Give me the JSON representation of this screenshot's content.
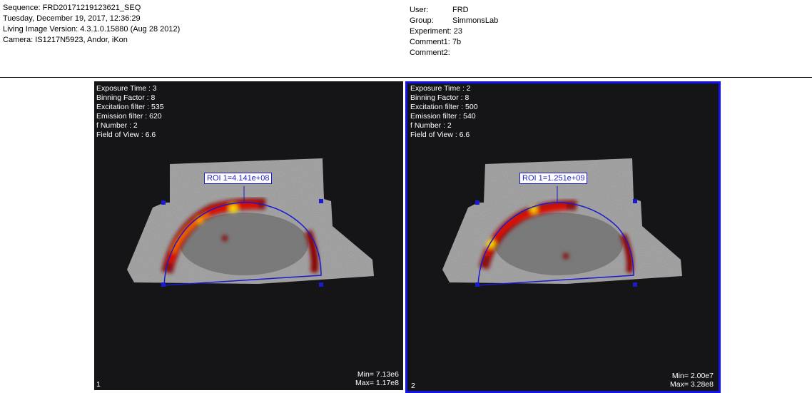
{
  "header": {
    "left": [
      "Sequence: FRD20171219123621_SEQ",
      "Tuesday, December 19, 2017, 12:36:29",
      "Living Image Version: 4.3.1.0.15880 (Aug 28 2012)",
      "Camera: IS1217N5923, Andor, iKon"
    ],
    "right": [
      {
        "key": "User:",
        "value": "FRD"
      },
      {
        "key": "Group:",
        "value": "SimmonsLab"
      },
      {
        "key": "Experiment:",
        "value": "23"
      },
      {
        "key": "Comment1:",
        "value": "7b"
      },
      {
        "key": "Comment2:",
        "value": ""
      }
    ]
  },
  "panels": [
    {
      "number": "1",
      "settings": [
        "Exposure Time : 3",
        "Binning Factor : 8",
        "Excitation filter : 535",
        "Emission filter : 620",
        "f Number : 2",
        "Field of View : 6.6"
      ],
      "roi_label": "ROI 1=4.141e+08",
      "min": "Min= 7.13e6",
      "max": "Max= 1.17e8",
      "selected": false
    },
    {
      "number": "2",
      "settings": [
        "Exposure Time : 2",
        "Binning Factor : 8",
        "Excitation filter : 500",
        "Emission filter : 540",
        "f Number : 2",
        "Field of View : 6.6"
      ],
      "roi_label": "ROI 1=1.251e+09",
      "min": "Min= 2.00e7",
      "max": "Max= 3.28e8",
      "selected": true
    }
  ],
  "colors": {
    "roi_outline": "#1a1ad0",
    "selection_frame": "#1414e6",
    "background": "#151517"
  }
}
